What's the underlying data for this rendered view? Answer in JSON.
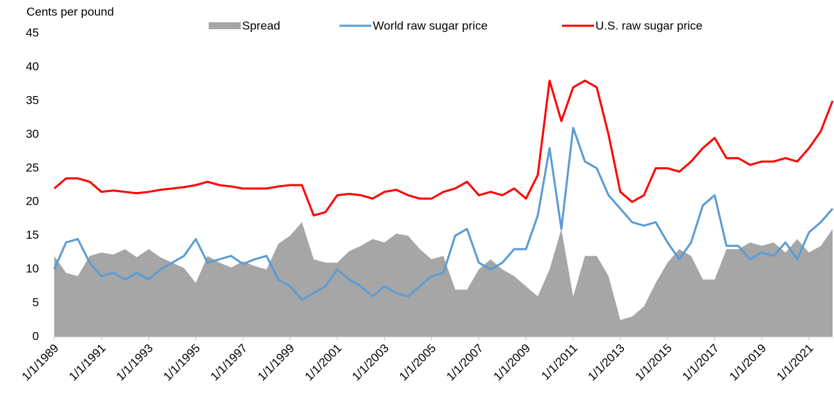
{
  "chart_data": {
    "type": "line",
    "y_axis_label": "Cents per pound",
    "x": [
      "1/1/1989",
      "7/1/1989",
      "1/1/1990",
      "7/1/1990",
      "1/1/1991",
      "7/1/1991",
      "1/1/1992",
      "7/1/1992",
      "1/1/1993",
      "7/1/1993",
      "1/1/1994",
      "7/1/1994",
      "1/1/1995",
      "7/1/1995",
      "1/1/1996",
      "7/1/1996",
      "1/1/1997",
      "7/1/1997",
      "1/1/1998",
      "7/1/1998",
      "1/1/1999",
      "7/1/1999",
      "1/1/2000",
      "7/1/2000",
      "1/1/2001",
      "7/1/2001",
      "1/1/2002",
      "7/1/2002",
      "1/1/2003",
      "7/1/2003",
      "1/1/2004",
      "7/1/2004",
      "1/1/2005",
      "7/1/2005",
      "1/1/2006",
      "7/1/2006",
      "1/1/2007",
      "7/1/2007",
      "1/1/2008",
      "7/1/2008",
      "1/1/2009",
      "7/1/2009",
      "1/1/2010",
      "7/1/2010",
      "1/1/2011",
      "7/1/2011",
      "1/1/2012",
      "7/1/2012",
      "1/1/2013",
      "7/1/2013",
      "1/1/2014",
      "7/1/2014",
      "1/1/2015",
      "7/1/2015",
      "1/1/2016",
      "7/1/2016",
      "1/1/2017",
      "7/1/2017",
      "1/1/2018",
      "7/1/2018",
      "1/1/2019",
      "7/1/2019",
      "1/1/2020",
      "7/1/2020",
      "1/1/2021",
      "7/1/2021",
      "1/1/2022"
    ],
    "series": [
      {
        "name": "Spread",
        "type": "area",
        "color": "#a6a6a6",
        "values": [
          12,
          9.5,
          9,
          12,
          12.5,
          12.2,
          13,
          11.8,
          13,
          11.8,
          11,
          10.2,
          8,
          12,
          11,
          10.3,
          11.2,
          10.5,
          10,
          13.8,
          15,
          17,
          11.5,
          11,
          11,
          12.7,
          13.5,
          14.5,
          14,
          15.3,
          15,
          13,
          11.5,
          12,
          7,
          7,
          10,
          11.5,
          10,
          9,
          7.5,
          6,
          10,
          16,
          6,
          12,
          12,
          9,
          2.5,
          3,
          4.5,
          8,
          11,
          13,
          12,
          8.5,
          8.5,
          13,
          13,
          14,
          13.5,
          14,
          12.5,
          14.5,
          12.5,
          13.5,
          16
        ]
      },
      {
        "name": "World raw sugar price",
        "type": "line",
        "color": "#5b9bd5",
        "values": [
          10,
          14,
          14.5,
          11,
          9,
          9.5,
          8.5,
          9.5,
          8.5,
          10,
          11,
          12,
          14.5,
          11,
          11.5,
          12,
          10.8,
          11.5,
          12,
          8.5,
          7.5,
          5.5,
          6.5,
          7.5,
          10,
          8.5,
          7.5,
          6,
          7.5,
          6.5,
          6,
          7.5,
          9,
          9.5,
          15,
          16,
          11,
          10,
          11,
          13,
          13,
          18,
          28,
          16,
          31,
          26,
          25,
          21,
          19,
          17,
          16.5,
          17,
          14,
          11.5,
          14,
          19.5,
          21,
          13.5,
          13.5,
          11.5,
          12.5,
          12,
          14,
          11.5,
          15.5,
          17,
          19
        ]
      },
      {
        "name": "U.S. raw sugar price",
        "type": "line",
        "color": "#ff0000",
        "values": [
          22,
          23.5,
          23.5,
          23,
          21.5,
          21.7,
          21.5,
          21.3,
          21.5,
          21.8,
          22,
          22.2,
          22.5,
          23,
          22.5,
          22.3,
          22,
          22,
          22,
          22.3,
          22.5,
          22.5,
          18,
          18.5,
          21,
          21.2,
          21,
          20.5,
          21.5,
          21.8,
          21,
          20.5,
          20.5,
          21.5,
          22,
          23,
          21,
          21.5,
          21,
          22,
          20.5,
          24,
          38,
          32,
          37,
          38,
          37,
          30,
          21.5,
          20,
          21,
          25,
          25,
          24.5,
          26,
          28,
          29.5,
          26.5,
          26.5,
          25.5,
          26,
          26,
          26.5,
          26,
          28,
          30.5,
          35
        ]
      }
    ],
    "xlim": [
      "1/1/1989",
      "1/1/2022"
    ],
    "xticks": [
      "1/1/1989",
      "1/1/1991",
      "1/1/1993",
      "1/1/1995",
      "1/1/1997",
      "1/1/1999",
      "1/1/2001",
      "1/1/2003",
      "1/1/2005",
      "1/1/2007",
      "1/1/2009",
      "1/1/2011",
      "1/1/2013",
      "1/1/2015",
      "1/1/2017",
      "1/1/2019",
      "1/1/2021"
    ],
    "ylim": [
      0,
      45
    ],
    "yticks": [
      0,
      5,
      10,
      15,
      20,
      25,
      30,
      35,
      40,
      45
    ],
    "legend": "top"
  }
}
